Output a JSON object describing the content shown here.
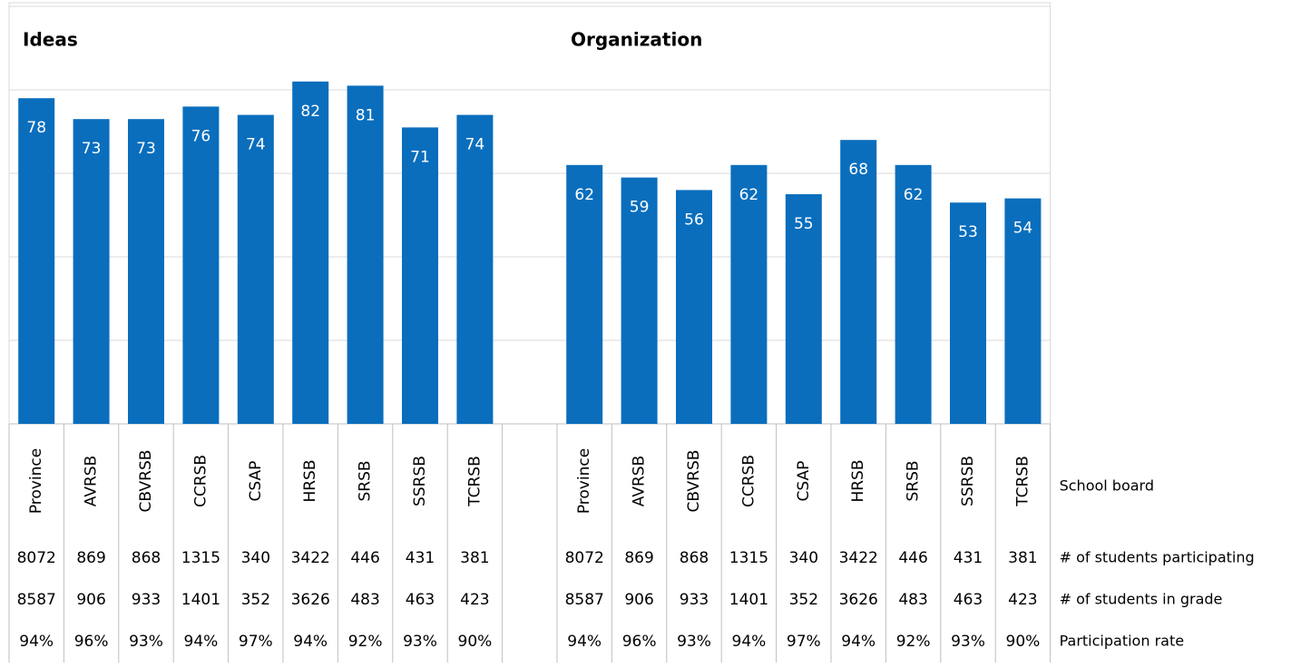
{
  "chart_data": [
    {
      "type": "bar",
      "title": "Ideas",
      "color": "#0a6ebd",
      "categories": [
        "Province",
        "AVRSB",
        "CBVRSB",
        "CCRSB",
        "CSAP",
        "HRSB",
        "SRSB",
        "SSRSB",
        "TCRSB"
      ],
      "values": [
        78,
        73,
        73,
        76,
        74,
        82,
        81,
        71,
        74
      ],
      "ylim": [
        0,
        100
      ],
      "yticks": [
        0,
        20,
        40,
        60,
        80,
        100
      ],
      "grid": true,
      "table_rows": [
        {
          "values": [
            8072,
            869,
            868,
            1315,
            340,
            3422,
            446,
            431,
            381
          ]
        },
        {
          "values": [
            8587,
            906,
            933,
            1401,
            352,
            3626,
            483,
            463,
            423
          ]
        },
        {
          "values": [
            94,
            96,
            93,
            94,
            97,
            94,
            92,
            93,
            90
          ],
          "value_labels": [
            "94%",
            "96%",
            "93%",
            "94%",
            "97%",
            "94%",
            "92%",
            "93%",
            "90%"
          ]
        }
      ]
    },
    {
      "type": "bar",
      "title": "Organization",
      "color": "#0a6ebd",
      "categories": [
        "Province",
        "AVRSB",
        "CBVRSB",
        "CCRSB",
        "CSAP",
        "HRSB",
        "SRSB",
        "SSRSB",
        "TCRSB"
      ],
      "values": [
        62,
        59,
        56,
        62,
        55,
        68,
        62,
        53,
        54
      ],
      "ylim": [
        0,
        100
      ],
      "yticks": [
        0,
        20,
        40,
        60,
        80,
        100
      ],
      "grid": true,
      "table_rows": [
        {
          "values": [
            8072,
            869,
            868,
            1315,
            340,
            3422,
            446,
            431,
            381
          ]
        },
        {
          "values": [
            8587,
            906,
            933,
            1401,
            352,
            3626,
            483,
            463,
            423
          ]
        },
        {
          "values": [
            94,
            96,
            93,
            94,
            97,
            94,
            92,
            93,
            90
          ],
          "value_labels": [
            "94%",
            "96%",
            "93%",
            "94%",
            "97%",
            "94%",
            "92%",
            "93%",
            "90%"
          ]
        }
      ]
    }
  ],
  "row_labels": [
    "School board",
    "# of students participating",
    "# of students in grade",
    "Participation rate"
  ]
}
